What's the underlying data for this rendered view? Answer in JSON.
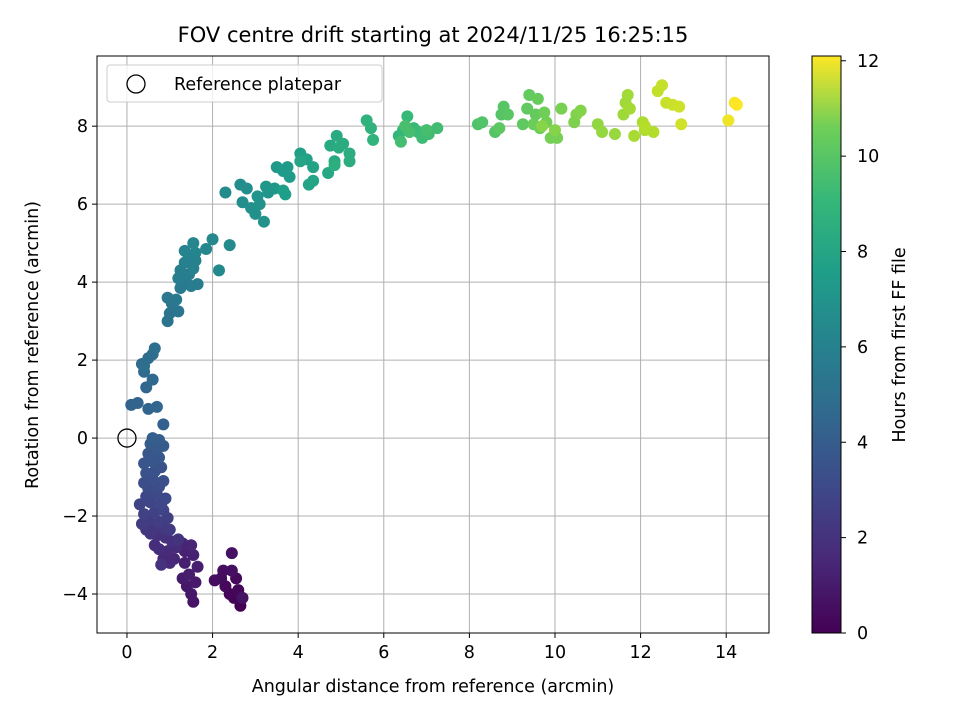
{
  "chart_data": {
    "type": "scatter",
    "title": "FOV centre drift starting at 2024/11/25 16:25:15",
    "xlabel": "Angular distance from reference (arcmin)",
    "ylabel": "Rotation from reference (arcmin)",
    "xlim": [
      -0.7,
      15.0
    ],
    "ylim": [
      -5.0,
      9.8
    ],
    "xticks": [
      0,
      2,
      4,
      6,
      8,
      10,
      12,
      14
    ],
    "yticks": [
      -4,
      -2,
      0,
      2,
      4,
      6,
      8
    ],
    "grid": true,
    "legend": {
      "placement": "top-left",
      "entries": [
        "Reference platepar"
      ]
    },
    "reference_point": {
      "x": 0,
      "y": 0,
      "label": "Reference platepar"
    },
    "colorbar": {
      "label": "Hours from first FF file",
      "min": 0,
      "max": 12.1,
      "ticks": [
        0,
        2,
        4,
        6,
        8,
        10,
        12
      ],
      "colormap": "viridis"
    },
    "points": [
      {
        "x": 2.65,
        "y": -4.3,
        "t": 0.0
      },
      {
        "x": 2.5,
        "y": -4.1,
        "t": 0.1
      },
      {
        "x": 2.4,
        "y": -4.0,
        "t": 0.15
      },
      {
        "x": 2.6,
        "y": -3.9,
        "t": 0.2
      },
      {
        "x": 2.3,
        "y": -3.8,
        "t": 0.25
      },
      {
        "x": 2.55,
        "y": -3.6,
        "t": 0.3
      },
      {
        "x": 2.2,
        "y": -3.6,
        "t": 0.35
      },
      {
        "x": 2.05,
        "y": -3.65,
        "t": 0.4
      },
      {
        "x": 2.25,
        "y": -3.4,
        "t": 0.45
      },
      {
        "x": 2.45,
        "y": -3.4,
        "t": 0.5
      },
      {
        "x": 2.45,
        "y": -2.95,
        "t": 0.55
      },
      {
        "x": 2.7,
        "y": -4.1,
        "t": 0.6
      },
      {
        "x": 1.55,
        "y": -4.2,
        "t": 0.7
      },
      {
        "x": 1.5,
        "y": -4.0,
        "t": 0.75
      },
      {
        "x": 1.4,
        "y": -3.8,
        "t": 0.8
      },
      {
        "x": 1.6,
        "y": -3.7,
        "t": 0.85
      },
      {
        "x": 1.3,
        "y": -3.6,
        "t": 0.9
      },
      {
        "x": 1.45,
        "y": -3.5,
        "t": 0.95
      },
      {
        "x": 1.65,
        "y": -3.3,
        "t": 1.0
      },
      {
        "x": 1.35,
        "y": -3.2,
        "t": 1.05
      },
      {
        "x": 1.55,
        "y": -3.0,
        "t": 1.1
      },
      {
        "x": 1.35,
        "y": -2.9,
        "t": 1.15
      },
      {
        "x": 1.3,
        "y": -2.7,
        "t": 1.2
      },
      {
        "x": 1.5,
        "y": -2.75,
        "t": 1.25
      },
      {
        "x": 1.1,
        "y": -3.1,
        "t": 1.3
      },
      {
        "x": 1.0,
        "y": -3.2,
        "t": 1.35
      },
      {
        "x": 0.85,
        "y": -3.1,
        "t": 1.4
      },
      {
        "x": 0.95,
        "y": -2.9,
        "t": 1.45
      },
      {
        "x": 1.15,
        "y": -2.8,
        "t": 1.5
      },
      {
        "x": 0.75,
        "y": -2.85,
        "t": 1.55
      },
      {
        "x": 0.65,
        "y": -2.75,
        "t": 1.6
      },
      {
        "x": 1.05,
        "y": -2.65,
        "t": 1.65
      },
      {
        "x": 0.9,
        "y": -2.55,
        "t": 1.7
      },
      {
        "x": 0.7,
        "y": -2.5,
        "t": 1.75
      },
      {
        "x": 0.8,
        "y": -3.25,
        "t": 1.8
      },
      {
        "x": 1.2,
        "y": -2.6,
        "t": 1.85
      },
      {
        "x": 0.55,
        "y": -2.45,
        "t": 1.9
      },
      {
        "x": 0.45,
        "y": -2.35,
        "t": 1.95
      },
      {
        "x": 0.6,
        "y": -2.25,
        "t": 2.0
      },
      {
        "x": 0.85,
        "y": -2.3,
        "t": 2.05
      },
      {
        "x": 1.0,
        "y": -2.35,
        "t": 2.1
      },
      {
        "x": 0.35,
        "y": -2.2,
        "t": 2.15
      },
      {
        "x": 0.5,
        "y": -2.1,
        "t": 2.2
      },
      {
        "x": 0.75,
        "y": -2.15,
        "t": 2.25
      },
      {
        "x": 0.95,
        "y": -2.05,
        "t": 2.3
      },
      {
        "x": 0.4,
        "y": -1.95,
        "t": 2.35
      },
      {
        "x": 0.65,
        "y": -1.9,
        "t": 2.4
      },
      {
        "x": 0.85,
        "y": -1.85,
        "t": 2.45
      },
      {
        "x": 0.3,
        "y": -1.7,
        "t": 2.5
      },
      {
        "x": 0.55,
        "y": -1.65,
        "t": 2.55
      },
      {
        "x": 0.8,
        "y": -1.7,
        "t": 2.6
      },
      {
        "x": 0.45,
        "y": -1.5,
        "t": 2.65
      },
      {
        "x": 0.7,
        "y": -1.45,
        "t": 2.7
      },
      {
        "x": 0.9,
        "y": -1.55,
        "t": 2.75
      },
      {
        "x": 0.5,
        "y": -1.3,
        "t": 2.8
      },
      {
        "x": 0.75,
        "y": -1.25,
        "t": 2.85
      },
      {
        "x": 0.4,
        "y": -1.15,
        "t": 2.9
      },
      {
        "x": 0.6,
        "y": -1.05,
        "t": 2.95
      },
      {
        "x": 0.85,
        "y": -1.1,
        "t": 3.0
      },
      {
        "x": 0.45,
        "y": -0.9,
        "t": 3.05
      },
      {
        "x": 0.65,
        "y": -0.85,
        "t": 3.1
      },
      {
        "x": 0.8,
        "y": -0.75,
        "t": 3.15
      },
      {
        "x": 0.4,
        "y": -0.65,
        "t": 3.2
      },
      {
        "x": 0.6,
        "y": -0.6,
        "t": 3.25
      },
      {
        "x": 0.75,
        "y": -0.5,
        "t": 3.3
      },
      {
        "x": 0.5,
        "y": -0.4,
        "t": 3.35
      },
      {
        "x": 0.7,
        "y": -0.3,
        "t": 3.4
      },
      {
        "x": 0.85,
        "y": -0.2,
        "t": 3.45
      },
      {
        "x": 0.55,
        "y": -0.15,
        "t": 3.5
      },
      {
        "x": 0.75,
        "y": -0.05,
        "t": 3.55
      },
      {
        "x": 0.6,
        "y": 0.0,
        "t": 3.6
      },
      {
        "x": 0.85,
        "y": 0.35,
        "t": 3.7
      },
      {
        "x": 0.1,
        "y": 0.85,
        "t": 3.8
      },
      {
        "x": 0.25,
        "y": 0.9,
        "t": 3.85
      },
      {
        "x": 0.5,
        "y": 0.75,
        "t": 3.9
      },
      {
        "x": 0.7,
        "y": 0.8,
        "t": 3.95
      },
      {
        "x": 0.45,
        "y": 1.3,
        "t": 4.0
      },
      {
        "x": 0.6,
        "y": 1.5,
        "t": 4.1
      },
      {
        "x": 0.4,
        "y": 1.7,
        "t": 4.15
      },
      {
        "x": 0.35,
        "y": 1.9,
        "t": 4.2
      },
      {
        "x": 0.5,
        "y": 2.05,
        "t": 4.25
      },
      {
        "x": 0.6,
        "y": 2.15,
        "t": 4.3
      },
      {
        "x": 0.65,
        "y": 2.3,
        "t": 4.35
      },
      {
        "x": 0.4,
        "y": 1.85,
        "t": 4.4
      },
      {
        "x": 0.95,
        "y": 3.0,
        "t": 4.6
      },
      {
        "x": 1.0,
        "y": 3.2,
        "t": 4.65
      },
      {
        "x": 1.2,
        "y": 3.25,
        "t": 4.7
      },
      {
        "x": 1.05,
        "y": 3.45,
        "t": 4.75
      },
      {
        "x": 0.95,
        "y": 3.6,
        "t": 4.8
      },
      {
        "x": 1.15,
        "y": 3.55,
        "t": 4.85
      },
      {
        "x": 1.25,
        "y": 3.85,
        "t": 4.9
      },
      {
        "x": 1.35,
        "y": 4.0,
        "t": 4.95
      },
      {
        "x": 1.5,
        "y": 3.9,
        "t": 5.0
      },
      {
        "x": 1.65,
        "y": 3.95,
        "t": 5.05
      },
      {
        "x": 1.2,
        "y": 4.1,
        "t": 5.1
      },
      {
        "x": 1.45,
        "y": 4.2,
        "t": 5.15
      },
      {
        "x": 1.25,
        "y": 4.3,
        "t": 5.2
      },
      {
        "x": 1.55,
        "y": 4.35,
        "t": 5.25
      },
      {
        "x": 1.35,
        "y": 4.5,
        "t": 5.3
      },
      {
        "x": 1.6,
        "y": 4.55,
        "t": 5.35
      },
      {
        "x": 1.45,
        "y": 4.65,
        "t": 5.4
      },
      {
        "x": 1.35,
        "y": 4.8,
        "t": 5.45
      },
      {
        "x": 1.6,
        "y": 4.75,
        "t": 5.5
      },
      {
        "x": 1.55,
        "y": 5.0,
        "t": 5.55
      },
      {
        "x": 1.85,
        "y": 4.85,
        "t": 5.6
      },
      {
        "x": 2.0,
        "y": 5.1,
        "t": 5.65
      },
      {
        "x": 2.15,
        "y": 4.3,
        "t": 5.7
      },
      {
        "x": 2.4,
        "y": 4.95,
        "t": 5.75
      },
      {
        "x": 2.3,
        "y": 6.3,
        "t": 5.8
      },
      {
        "x": 2.65,
        "y": 6.5,
        "t": 5.9
      },
      {
        "x": 2.8,
        "y": 6.4,
        "t": 5.95
      },
      {
        "x": 2.7,
        "y": 6.05,
        "t": 6.0
      },
      {
        "x": 2.9,
        "y": 5.9,
        "t": 6.05
      },
      {
        "x": 3.0,
        "y": 5.75,
        "t": 6.1
      },
      {
        "x": 3.1,
        "y": 6.0,
        "t": 6.15
      },
      {
        "x": 3.2,
        "y": 5.55,
        "t": 6.2
      },
      {
        "x": 3.05,
        "y": 6.2,
        "t": 6.25
      },
      {
        "x": 3.3,
        "y": 6.3,
        "t": 6.3
      },
      {
        "x": 3.25,
        "y": 6.45,
        "t": 6.35
      },
      {
        "x": 3.45,
        "y": 6.4,
        "t": 6.4
      },
      {
        "x": 3.5,
        "y": 6.95,
        "t": 6.5
      },
      {
        "x": 3.65,
        "y": 6.85,
        "t": 6.55
      },
      {
        "x": 3.8,
        "y": 6.7,
        "t": 6.6
      },
      {
        "x": 3.75,
        "y": 6.95,
        "t": 6.65
      },
      {
        "x": 3.65,
        "y": 6.35,
        "t": 6.7
      },
      {
        "x": 3.7,
        "y": 6.25,
        "t": 6.75
      },
      {
        "x": 4.05,
        "y": 7.3,
        "t": 6.85
      },
      {
        "x": 4.2,
        "y": 7.15,
        "t": 6.9
      },
      {
        "x": 4.35,
        "y": 6.95,
        "t": 6.95
      },
      {
        "x": 4.25,
        "y": 6.5,
        "t": 7.0
      },
      {
        "x": 4.35,
        "y": 6.6,
        "t": 7.05
      },
      {
        "x": 4.05,
        "y": 7.1,
        "t": 7.1
      },
      {
        "x": 4.7,
        "y": 6.8,
        "t": 7.2
      },
      {
        "x": 4.85,
        "y": 7.1,
        "t": 7.25
      },
      {
        "x": 4.75,
        "y": 7.5,
        "t": 7.3
      },
      {
        "x": 4.9,
        "y": 7.75,
        "t": 7.35
      },
      {
        "x": 4.95,
        "y": 7.45,
        "t": 7.4
      },
      {
        "x": 5.05,
        "y": 7.55,
        "t": 7.45
      },
      {
        "x": 5.2,
        "y": 7.3,
        "t": 7.5
      },
      {
        "x": 5.2,
        "y": 7.1,
        "t": 7.55
      },
      {
        "x": 4.85,
        "y": 7.0,
        "t": 7.6
      },
      {
        "x": 5.6,
        "y": 8.15,
        "t": 7.75
      },
      {
        "x": 5.7,
        "y": 7.95,
        "t": 7.8
      },
      {
        "x": 5.75,
        "y": 7.65,
        "t": 7.85
      },
      {
        "x": 6.35,
        "y": 7.75,
        "t": 8.0
      },
      {
        "x": 6.45,
        "y": 7.9,
        "t": 8.05
      },
      {
        "x": 6.55,
        "y": 8.25,
        "t": 8.1
      },
      {
        "x": 6.7,
        "y": 7.95,
        "t": 8.15
      },
      {
        "x": 6.8,
        "y": 7.85,
        "t": 8.2
      },
      {
        "x": 6.9,
        "y": 7.7,
        "t": 8.25
      },
      {
        "x": 7.05,
        "y": 7.8,
        "t": 8.3
      },
      {
        "x": 7.25,
        "y": 7.95,
        "t": 8.35
      },
      {
        "x": 6.4,
        "y": 7.6,
        "t": 8.4
      },
      {
        "x": 6.6,
        "y": 7.85,
        "t": 8.45
      },
      {
        "x": 7.0,
        "y": 7.9,
        "t": 8.5
      },
      {
        "x": 6.5,
        "y": 8.0,
        "t": 8.55
      },
      {
        "x": 8.2,
        "y": 8.05,
        "t": 8.7
      },
      {
        "x": 8.3,
        "y": 8.1,
        "t": 8.75
      },
      {
        "x": 8.6,
        "y": 7.85,
        "t": 8.8
      },
      {
        "x": 8.75,
        "y": 8.3,
        "t": 8.85
      },
      {
        "x": 8.8,
        "y": 8.5,
        "t": 8.9
      },
      {
        "x": 8.9,
        "y": 8.3,
        "t": 8.95
      },
      {
        "x": 8.7,
        "y": 7.95,
        "t": 9.0
      },
      {
        "x": 9.25,
        "y": 8.05,
        "t": 9.05
      },
      {
        "x": 9.35,
        "y": 8.45,
        "t": 9.1
      },
      {
        "x": 9.4,
        "y": 8.8,
        "t": 9.15
      },
      {
        "x": 9.55,
        "y": 8.3,
        "t": 9.2
      },
      {
        "x": 9.6,
        "y": 8.7,
        "t": 9.25
      },
      {
        "x": 9.5,
        "y": 8.05,
        "t": 9.3
      },
      {
        "x": 9.65,
        "y": 7.95,
        "t": 9.35
      },
      {
        "x": 9.75,
        "y": 8.35,
        "t": 9.4
      },
      {
        "x": 9.8,
        "y": 8.1,
        "t": 9.45
      },
      {
        "x": 9.9,
        "y": 7.7,
        "t": 9.5
      },
      {
        "x": 10.05,
        "y": 7.7,
        "t": 9.55
      },
      {
        "x": 10.15,
        "y": 8.45,
        "t": 9.6
      },
      {
        "x": 10.45,
        "y": 8.1,
        "t": 9.7
      },
      {
        "x": 10.5,
        "y": 8.3,
        "t": 9.75
      },
      {
        "x": 10.6,
        "y": 8.4,
        "t": 9.8
      },
      {
        "x": 10.0,
        "y": 7.9,
        "t": 9.85
      },
      {
        "x": 9.7,
        "y": 8.0,
        "t": 9.9
      },
      {
        "x": 11.0,
        "y": 8.05,
        "t": 10.1
      },
      {
        "x": 11.1,
        "y": 7.85,
        "t": 10.15
      },
      {
        "x": 11.4,
        "y": 7.8,
        "t": 10.2
      },
      {
        "x": 11.6,
        "y": 8.3,
        "t": 10.3
      },
      {
        "x": 11.65,
        "y": 8.6,
        "t": 10.35
      },
      {
        "x": 11.7,
        "y": 8.8,
        "t": 10.4
      },
      {
        "x": 11.75,
        "y": 8.45,
        "t": 10.45
      },
      {
        "x": 11.85,
        "y": 7.75,
        "t": 10.5
      },
      {
        "x": 12.05,
        "y": 8.1,
        "t": 10.6
      },
      {
        "x": 12.1,
        "y": 7.9,
        "t": 10.65
      },
      {
        "x": 12.3,
        "y": 7.85,
        "t": 10.7
      },
      {
        "x": 12.1,
        "y": 8.0,
        "t": 10.75
      },
      {
        "x": 12.4,
        "y": 8.9,
        "t": 11.0
      },
      {
        "x": 12.5,
        "y": 9.05,
        "t": 11.05
      },
      {
        "x": 12.6,
        "y": 8.6,
        "t": 11.1
      },
      {
        "x": 12.75,
        "y": 8.55,
        "t": 11.15
      },
      {
        "x": 12.9,
        "y": 8.5,
        "t": 11.2
      },
      {
        "x": 12.95,
        "y": 8.05,
        "t": 11.25
      },
      {
        "x": 14.05,
        "y": 8.15,
        "t": 11.8
      },
      {
        "x": 14.2,
        "y": 8.6,
        "t": 12.0
      },
      {
        "x": 14.25,
        "y": 8.55,
        "t": 12.1
      }
    ]
  }
}
